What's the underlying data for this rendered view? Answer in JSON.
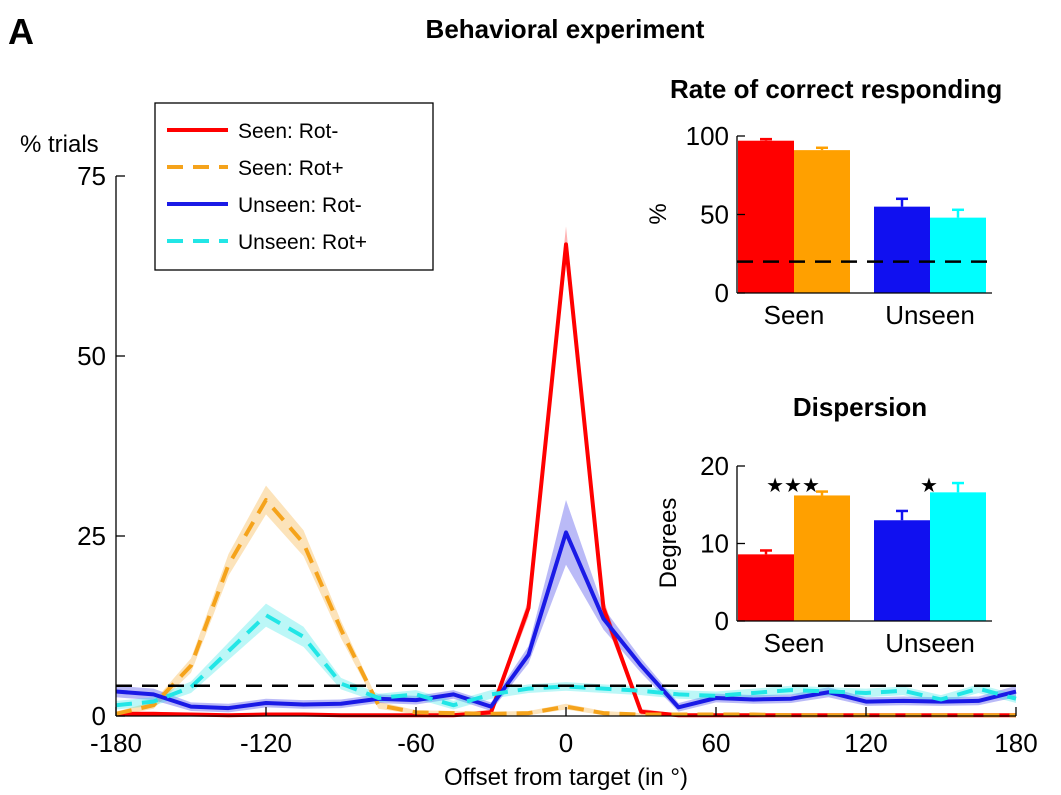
{
  "panel_label": "A",
  "figure_title": "Behavioral experiment",
  "chart_data": [
    {
      "type": "line",
      "title": "",
      "xlabel": "Offset from target  (in °)",
      "ylabel": "% trials",
      "xlim": [
        -180,
        180
      ],
      "ylim": [
        0,
        75
      ],
      "xticks": [
        -180,
        -120,
        -60,
        0,
        60,
        120,
        180
      ],
      "yticks": [
        0,
        25,
        50,
        75
      ],
      "chance_level": 4.2,
      "legend_position": "top-left",
      "x": [
        -180,
        -165,
        -150,
        -135,
        -120,
        -105,
        -90,
        -75,
        -60,
        -45,
        -30,
        -15,
        0,
        15,
        30,
        45,
        60,
        75,
        90,
        105,
        120,
        135,
        150,
        165,
        180
      ],
      "series": [
        {
          "name": "Seen: Rot-",
          "style": "solid",
          "color": "#ff0000",
          "values": [
            0.3,
            0.3,
            0.2,
            0.1,
            0.2,
            0.2,
            0.1,
            0.1,
            0.1,
            0.1,
            0.5,
            15,
            65.5,
            15,
            0.6,
            0.1,
            0.1,
            0.1,
            0.1,
            0.1,
            0.1,
            0.1,
            0.1,
            0.1,
            0.1
          ],
          "error": [
            0.3,
            0.3,
            0.2,
            0.2,
            0.2,
            0.2,
            0.2,
            0.2,
            0.2,
            0.2,
            0.4,
            1.2,
            2.5,
            1.2,
            0.4,
            0.2,
            0.2,
            0.2,
            0.2,
            0.2,
            0.2,
            0.2,
            0.2,
            0.2,
            0.2
          ]
        },
        {
          "name": "Seen: Rot+",
          "style": "dashed",
          "color": "#f5a31b",
          "values": [
            0.3,
            1.5,
            7,
            21,
            30,
            24,
            12,
            1.5,
            0.5,
            0.4,
            0.3,
            0.4,
            1.3,
            0.4,
            0.2,
            0.2,
            0.2,
            0.2,
            0.1,
            0.1,
            0.1,
            0.1,
            0.1,
            0.1,
            0.1
          ],
          "error": [
            0.3,
            0.5,
            1,
            1.5,
            2,
            1.8,
            1.2,
            0.5,
            0.3,
            0.3,
            0.3,
            0.3,
            0.4,
            0.3,
            0.2,
            0.2,
            0.2,
            0.2,
            0.2,
            0.2,
            0.2,
            0.2,
            0.2,
            0.2,
            0.2
          ]
        },
        {
          "name": "Unseen: Rot-",
          "style": "solid",
          "color": "#1a1ae6",
          "values": [
            3.4,
            3,
            1.3,
            1.1,
            1.8,
            1.6,
            1.7,
            2.4,
            2.2,
            3,
            1.3,
            8.5,
            25.5,
            13.5,
            7,
            1.2,
            2.5,
            2.3,
            2.4,
            3.3,
            2,
            2.1,
            2,
            2.1,
            3.4
          ],
          "error": [
            0.8,
            0.8,
            0.6,
            0.6,
            0.6,
            0.6,
            0.6,
            0.6,
            0.6,
            0.6,
            0.6,
            1.2,
            4.5,
            1.5,
            1,
            0.6,
            0.6,
            0.6,
            0.6,
            0.7,
            0.6,
            0.6,
            0.6,
            0.6,
            0.8
          ]
        },
        {
          "name": "Unseen: Rot+",
          "style": "dashed",
          "color": "#22e6e6",
          "values": [
            1.5,
            2,
            4,
            9,
            14,
            11,
            4.5,
            2.5,
            3,
            1.5,
            3,
            3.8,
            4.1,
            3.8,
            3.5,
            3,
            2.8,
            3.2,
            3.6,
            3.4,
            3.2,
            3.5,
            2.3,
            3.8,
            2.4
          ],
          "error": [
            0.6,
            0.6,
            0.8,
            1.2,
            1.6,
            1.4,
            0.8,
            0.6,
            0.6,
            0.6,
            0.6,
            0.6,
            0.6,
            0.6,
            0.6,
            0.6,
            0.6,
            0.6,
            0.6,
            0.6,
            0.6,
            0.6,
            0.6,
            0.6,
            0.6
          ]
        }
      ]
    },
    {
      "type": "bar",
      "title": "Rate of correct responding",
      "xlabel": "",
      "ylabel": "%",
      "ylim": [
        0,
        100
      ],
      "yticks": [
        0,
        50,
        100
      ],
      "groups": [
        "Seen",
        "Unseen"
      ],
      "chance_level": 20,
      "bars": [
        {
          "group": "Seen",
          "series": "Rot-",
          "value": 97,
          "error": 1,
          "color": "#ff0000"
        },
        {
          "group": "Seen",
          "series": "Rot+",
          "value": 91,
          "error": 1.5,
          "color": "#ffa000"
        },
        {
          "group": "Unseen",
          "series": "Rot-",
          "value": 55,
          "error": 5,
          "color": "#1010f0"
        },
        {
          "group": "Unseen",
          "series": "Rot+",
          "value": 48,
          "error": 5,
          "color": "#00ffff"
        }
      ]
    },
    {
      "type": "bar",
      "title": "Dispersion",
      "xlabel": "",
      "ylabel": "Degrees",
      "ylim": [
        0,
        20
      ],
      "yticks": [
        0,
        10,
        20
      ],
      "groups": [
        "Seen",
        "Unseen"
      ],
      "significance": [
        {
          "group": "Seen",
          "label": "★★★"
        },
        {
          "group": "Unseen",
          "label": "★"
        }
      ],
      "bars": [
        {
          "group": "Seen",
          "series": "Rot-",
          "value": 8.6,
          "error": 0.5,
          "color": "#ff0000"
        },
        {
          "group": "Seen",
          "series": "Rot+",
          "value": 16.2,
          "error": 0.5,
          "color": "#ffa000"
        },
        {
          "group": "Unseen",
          "series": "Rot-",
          "value": 13.0,
          "error": 1.2,
          "color": "#1010f0"
        },
        {
          "group": "Unseen",
          "series": "Rot+",
          "value": 16.6,
          "error": 1.2,
          "color": "#00ffff"
        }
      ]
    }
  ]
}
